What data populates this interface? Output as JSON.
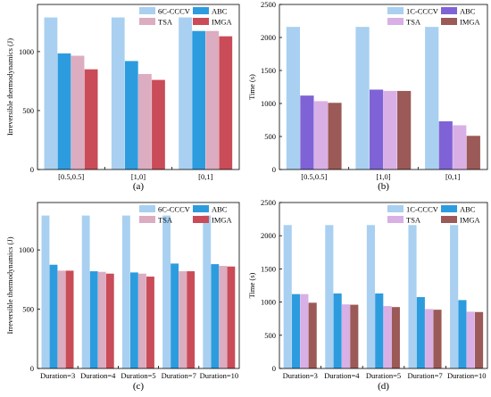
{
  "colors": {
    "c1": "#a9d0f0",
    "c2": "#2d9cdf",
    "c3": "#dcacc0",
    "c4": "#c94c58",
    "c2_alt": "#7f63d6",
    "c3_alt": "#d9b0e6",
    "c4_alt": "#9b5a57"
  },
  "chart_data": [
    {
      "type": "bar",
      "panel": "(a)",
      "ylabel": "Irreversible thermodynamics (J)",
      "ylim": [
        0,
        1400
      ],
      "yticks": [
        0,
        500,
        1000
      ],
      "legend_position": "top-right",
      "categories": [
        "[0.5,0.5]",
        "[1,0]",
        "[0,1]"
      ],
      "series": [
        {
          "name": "6C-CCCV",
          "values": [
            1290,
            1290,
            1290
          ],
          "color_key": "c1"
        },
        {
          "name": "ABC",
          "values": [
            985,
            920,
            1175
          ],
          "color_key": "c2"
        },
        {
          "name": "TSA",
          "values": [
            965,
            810,
            1175
          ],
          "color_key": "c3"
        },
        {
          "name": "IMGA",
          "values": [
            850,
            760,
            1130
          ],
          "color_key": "c4"
        }
      ]
    },
    {
      "type": "bar",
      "panel": "(b)",
      "ylabel": "Time (s)",
      "ylim": [
        0,
        2500
      ],
      "yticks": [
        0,
        500,
        1000,
        1500,
        2000,
        2500
      ],
      "legend_position": "top-right",
      "categories": [
        "[0.5,0.5]",
        "[1,0]",
        "[0,1]"
      ],
      "series": [
        {
          "name": "1C-CCCV",
          "values": [
            2160,
            2160,
            2160
          ],
          "color_key": "c1"
        },
        {
          "name": "ABC",
          "values": [
            1120,
            1210,
            730
          ],
          "color_key": "c2_alt"
        },
        {
          "name": "TSA",
          "values": [
            1035,
            1190,
            670
          ],
          "color_key": "c3_alt"
        },
        {
          "name": "IMGA",
          "values": [
            1010,
            1190,
            510
          ],
          "color_key": "c4_alt"
        }
      ]
    },
    {
      "type": "bar",
      "panel": "(c)",
      "ylabel": "Irreversible thermodynamics (J)",
      "ylim": [
        0,
        1400
      ],
      "yticks": [
        0,
        500,
        1000
      ],
      "legend_position": "top-right",
      "categories": [
        "Duration=3",
        "Duration=4",
        "Duration=5",
        "Duration=7",
        "Duration=10"
      ],
      "series": [
        {
          "name": "6C-CCCV",
          "values": [
            1290,
            1290,
            1290,
            1290,
            1290
          ],
          "color_key": "c1"
        },
        {
          "name": "ABC",
          "values": [
            875,
            820,
            810,
            885,
            880
          ],
          "color_key": "c2"
        },
        {
          "name": "TSA",
          "values": [
            825,
            815,
            800,
            820,
            865
          ],
          "color_key": "c3"
        },
        {
          "name": "IMGA",
          "values": [
            825,
            800,
            775,
            820,
            860
          ],
          "color_key": "c4"
        }
      ]
    },
    {
      "type": "bar",
      "panel": "(d)",
      "ylabel": "Time (s)",
      "ylim": [
        0,
        2500
      ],
      "yticks": [
        0,
        500,
        1000,
        1500,
        2000,
        2500
      ],
      "legend_position": "top-right",
      "categories": [
        "Duration=3",
        "Duration=4",
        "Duration=5",
        "Duration=7",
        "Duration=10"
      ],
      "series": [
        {
          "name": "1C-CCCV",
          "values": [
            2160,
            2160,
            2160,
            2160,
            2160
          ],
          "color_key": "c1"
        },
        {
          "name": "ABC",
          "values": [
            1120,
            1130,
            1130,
            1075,
            1030
          ],
          "color_key": "c2"
        },
        {
          "name": "TSA",
          "values": [
            1120,
            965,
            940,
            895,
            855
          ],
          "color_key": "c3_alt"
        },
        {
          "name": "IMGA",
          "values": [
            990,
            960,
            925,
            885,
            850
          ],
          "color_key": "c4_alt"
        }
      ]
    }
  ]
}
